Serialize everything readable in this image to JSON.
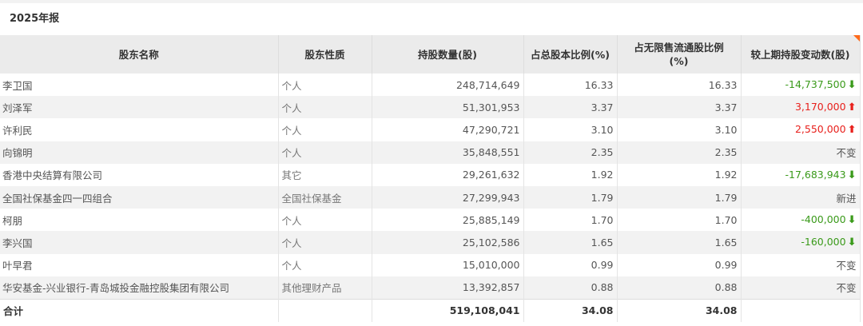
{
  "section_title": "2025年报",
  "headers": [
    "股东名称",
    "股东性质",
    "持股数量(股)",
    "占总股本比例(%)",
    "占无限售流通股比例(%)",
    "较上期持股变动数(股)"
  ],
  "rows": [
    {
      "name": "李卫国",
      "type": "个人",
      "shares": "248,714,649",
      "pct_total": "16.33",
      "pct_float": "16.33",
      "change": "-14,737,500",
      "dir": "down"
    },
    {
      "name": "刘泽军",
      "type": "个人",
      "shares": "51,301,953",
      "pct_total": "3.37",
      "pct_float": "3.37",
      "change": "3,170,000",
      "dir": "up"
    },
    {
      "name": "许利民",
      "type": "个人",
      "shares": "47,290,721",
      "pct_total": "3.10",
      "pct_float": "3.10",
      "change": "2,550,000",
      "dir": "up"
    },
    {
      "name": "向锦明",
      "type": "个人",
      "shares": "35,848,551",
      "pct_total": "2.35",
      "pct_float": "2.35",
      "change": "不变",
      "dir": "none"
    },
    {
      "name": "香港中央结算有限公司",
      "type": "其它",
      "shares": "29,261,632",
      "pct_total": "1.92",
      "pct_float": "1.92",
      "change": "-17,683,943",
      "dir": "down"
    },
    {
      "name": "全国社保基金四一四组合",
      "type": "全国社保基金",
      "shares": "27,299,943",
      "pct_total": "1.79",
      "pct_float": "1.79",
      "change": "新进",
      "dir": "none"
    },
    {
      "name": "柯朋",
      "type": "个人",
      "shares": "25,885,149",
      "pct_total": "1.70",
      "pct_float": "1.70",
      "change": "-400,000",
      "dir": "down"
    },
    {
      "name": "李兴国",
      "type": "个人",
      "shares": "25,102,586",
      "pct_total": "1.65",
      "pct_float": "1.65",
      "change": "-160,000",
      "dir": "down"
    },
    {
      "name": "叶早君",
      "type": "个人",
      "shares": "15,010,000",
      "pct_total": "0.99",
      "pct_float": "0.99",
      "change": "不变",
      "dir": "none"
    },
    {
      "name": "华安基金-兴业银行-青岛城投金融控股集团有限公司",
      "type": "其他理财产品",
      "shares": "13,392,857",
      "pct_total": "0.88",
      "pct_float": "0.88",
      "change": "不变",
      "dir": "none"
    }
  ],
  "total": {
    "label": "合计",
    "shares": "519,108,041",
    "pct_total": "34.08",
    "pct_float": "34.08"
  },
  "colors": {
    "up": "#e8201c",
    "down": "#3a9a1a",
    "header_bg": "#ebebeb",
    "corner": "#ff6a1a"
  }
}
